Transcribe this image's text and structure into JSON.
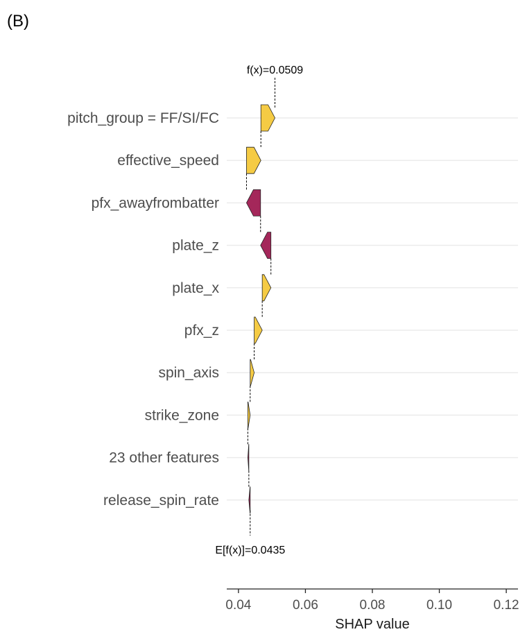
{
  "panel_label": "(B)",
  "chart_data": {
    "type": "waterfall",
    "xlabel": "SHAP value",
    "xlim": [
      0.0365,
      0.1235
    ],
    "xticks": [
      0.04,
      0.06,
      0.08,
      0.1,
      0.12
    ],
    "xtick_labels": [
      "0.04",
      "0.06",
      "0.08",
      "0.10",
      "0.12"
    ],
    "fx_label": "f(x)=0.0509",
    "efx_label": "E[f(x)]=0.0435",
    "fx": 0.0509,
    "efx": 0.0435,
    "grid": true,
    "colors": {
      "positive": "#f5cb44",
      "negative": "#a4275a"
    },
    "features": [
      {
        "name": "pitch_group = FF/SI/FC",
        "start": 0.0467,
        "end": 0.0509
      },
      {
        "name": "effective_speed",
        "start": 0.0424,
        "end": 0.0467
      },
      {
        "name": "pfx_awayfrombatter",
        "start": 0.0466,
        "end": 0.0424
      },
      {
        "name": "plate_z",
        "start": 0.0497,
        "end": 0.0466
      },
      {
        "name": "plate_x",
        "start": 0.0471,
        "end": 0.0497
      },
      {
        "name": "pfx_z",
        "start": 0.0447,
        "end": 0.0471
      },
      {
        "name": "spin_axis",
        "start": 0.0435,
        "end": 0.0447
      },
      {
        "name": "strike_zone",
        "start": 0.0428,
        "end": 0.0435
      },
      {
        "name": "23 other features",
        "start": 0.0431,
        "end": 0.0428
      },
      {
        "name": "release_spin_rate",
        "start": 0.0435,
        "end": 0.0431
      }
    ]
  }
}
